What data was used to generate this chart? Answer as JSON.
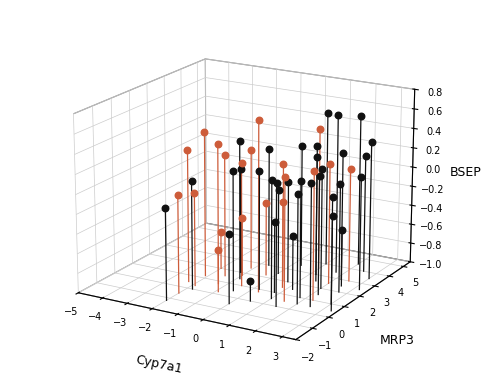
{
  "title": "",
  "xlabel": "Cyp7a1",
  "ylabel": "MRP3",
  "zlabel": "BSEP",
  "xlim": [
    -5,
    3.5
  ],
  "ylim": [
    -2,
    5.5
  ],
  "zlim": [
    -1.0,
    0.8
  ],
  "xticks": [
    -5,
    -4,
    -3,
    -2,
    -1,
    0,
    1,
    2,
    3
  ],
  "yticks": [
    -2,
    -1,
    0,
    1,
    2,
    3,
    4,
    5
  ],
  "zticks": [
    -1.0,
    -0.8,
    -0.6,
    -0.4,
    -0.2,
    0.0,
    0.2,
    0.4,
    0.6,
    0.8
  ],
  "red_points": [
    [
      -2.3,
      0.5,
      0.35
    ],
    [
      -2.1,
      1.2,
      0.48
    ],
    [
      -2.0,
      -0.5,
      0.0
    ],
    [
      -2.0,
      2.0,
      -0.62
    ],
    [
      -1.9,
      0.3,
      -0.05
    ],
    [
      -1.5,
      1.5,
      0.25
    ],
    [
      -1.3,
      0.8,
      0.43
    ],
    [
      -1.1,
      2.5,
      0.23
    ],
    [
      -1.0,
      1.8,
      -0.4
    ],
    [
      -0.9,
      0.2,
      -0.57
    ],
    [
      -0.5,
      1.0,
      0.25
    ],
    [
      -0.3,
      2.2,
      -0.25
    ],
    [
      0.3,
      0.8,
      0.73
    ],
    [
      0.5,
      2.0,
      0.2
    ],
    [
      0.8,
      1.5,
      -0.12
    ],
    [
      1.0,
      3.5,
      0.45
    ],
    [
      1.5,
      0.5,
      0.25
    ],
    [
      2.0,
      2.5,
      0.22
    ],
    [
      2.3,
      1.0,
      0.3
    ],
    [
      2.5,
      3.0,
      0.15
    ]
  ],
  "black_points": [
    [
      -2.0,
      -1.2,
      -0.07
    ],
    [
      -1.8,
      0.0,
      0.1
    ],
    [
      -1.2,
      2.0,
      0.08
    ],
    [
      -0.9,
      1.5,
      0.42
    ],
    [
      -0.7,
      3.0,
      0.22
    ],
    [
      -0.5,
      0.5,
      0.22
    ],
    [
      0.0,
      2.5,
      -0.13
    ],
    [
      0.0,
      -0.5,
      -0.3
    ],
    [
      0.2,
      1.0,
      0.21
    ],
    [
      0.3,
      3.5,
      0.25
    ],
    [
      0.5,
      0.0,
      -0.8
    ],
    [
      0.7,
      2.0,
      0.03
    ],
    [
      0.8,
      1.0,
      -0.28
    ],
    [
      1.0,
      4.0,
      0.58
    ],
    [
      1.0,
      0.5,
      0.2
    ],
    [
      1.2,
      3.0,
      0.33
    ],
    [
      1.2,
      1.5,
      -0.45
    ],
    [
      1.5,
      2.5,
      0.27
    ],
    [
      1.5,
      0.0,
      0.23
    ],
    [
      1.7,
      3.5,
      0.62
    ],
    [
      1.8,
      1.0,
      0.18
    ],
    [
      2.0,
      4.5,
      0.55
    ],
    [
      2.0,
      2.0,
      0.22
    ],
    [
      2.0,
      0.5,
      0.1
    ],
    [
      2.2,
      3.0,
      0.3
    ],
    [
      2.2,
      1.5,
      0.2
    ],
    [
      2.5,
      4.0,
      0.2
    ],
    [
      2.5,
      2.5,
      -0.42
    ],
    [
      2.5,
      0.5,
      0.23
    ],
    [
      2.7,
      2.0,
      0.1
    ],
    [
      3.0,
      3.5,
      0.4
    ],
    [
      3.0,
      1.0,
      0.07
    ],
    [
      3.2,
      2.5,
      0.15
    ],
    [
      3.3,
      0.5,
      -0.05
    ]
  ],
  "red_color": "#CD5C3A",
  "black_color": "#111111",
  "background_color": "#ffffff",
  "figsize": [
    4.85,
    3.91
  ],
  "dpi": 100,
  "elev": 18,
  "azim": -60
}
